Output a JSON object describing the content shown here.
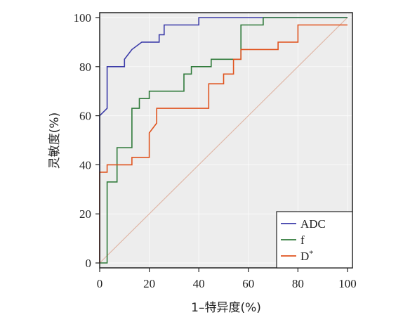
{
  "chart_data": {
    "type": "line",
    "xlabel": "1–特异度(%)",
    "ylabel": "灵敏度(%)",
    "xlim": [
      0,
      102
    ],
    "ylim": [
      -2,
      102
    ],
    "x_ticks": [
      0,
      20,
      40,
      60,
      80,
      100
    ],
    "y_ticks": [
      0,
      20,
      40,
      60,
      80,
      100
    ],
    "x_tick_labels": [
      "0",
      "20",
      "40",
      "60",
      "80",
      "100"
    ],
    "y_tick_labels": [
      "0",
      "20",
      "40",
      "60",
      "80",
      "100"
    ],
    "grid": true,
    "legend_position": "bottom-right",
    "reference_line": {
      "x": [
        0,
        100
      ],
      "y": [
        0,
        100
      ],
      "color": "#e0b8a8"
    },
    "series": [
      {
        "name": "ADC",
        "color": "#3a3aa8",
        "x": [
          0,
          0,
          3,
          3,
          10,
          10,
          13,
          17,
          24,
          24,
          26,
          26,
          40,
          40,
          100
        ],
        "y": [
          0,
          60,
          63,
          80,
          80,
          83,
          87,
          90,
          90,
          93,
          93,
          97,
          97,
          100,
          100
        ]
      },
      {
        "name": "f",
        "color": "#2f7a3a",
        "x": [
          0,
          3,
          3,
          7,
          7,
          13,
          13,
          16,
          16,
          20,
          20,
          34,
          34,
          37,
          37,
          45,
          45,
          57,
          57,
          66,
          66,
          100
        ],
        "y": [
          0,
          0,
          33,
          33,
          47,
          47,
          63,
          63,
          67,
          67,
          70,
          70,
          77,
          77,
          80,
          80,
          83,
          83,
          97,
          97,
          100,
          100
        ]
      },
      {
        "name": "D*",
        "color": "#e0531e",
        "x": [
          0,
          0,
          3,
          3,
          13,
          13,
          20,
          20,
          23,
          23,
          44,
          44,
          50,
          50,
          54,
          54,
          57,
          57,
          72,
          72,
          80,
          80,
          100
        ],
        "y": [
          0,
          37,
          37,
          40,
          40,
          43,
          43,
          53,
          57,
          63,
          63,
          73,
          73,
          77,
          77,
          83,
          83,
          87,
          87,
          90,
          90,
          97,
          97
        ]
      }
    ]
  }
}
